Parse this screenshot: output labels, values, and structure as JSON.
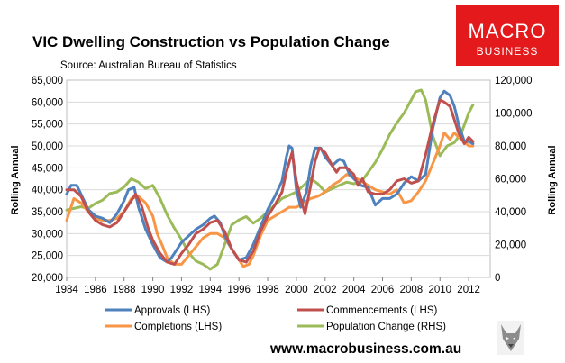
{
  "logo": {
    "line1": "MACRO",
    "line2": "BUSINESS"
  },
  "website": "www.macrobusiness.com.au",
  "colors": {
    "approvals": "#4F81BD",
    "commencements": "#C0504D",
    "completions": "#F79646",
    "population": "#9BBB59",
    "logo_bg": "#E3191B",
    "plot_border": "#BFBFBF",
    "grid": "#D9D9D9"
  },
  "chart_data": {
    "type": "line",
    "title": "VIC Dwelling Construction vs Population Change",
    "subtitle": "Source: Australian Bureau of Statistics",
    "ylabel_left": "Rolling Annual",
    "ylabel_right": "Rolling Annual",
    "xlim": [
      1984,
      2013.5
    ],
    "ylim_left": [
      20000,
      65000
    ],
    "ylim_right": [
      0,
      120000
    ],
    "x_ticks": [
      "1984",
      "1986",
      "1988",
      "1990",
      "1992",
      "1994",
      "1996",
      "1998",
      "2000",
      "2002",
      "2004",
      "2006",
      "2008",
      "2010",
      "2012"
    ],
    "y_ticks_left": [
      "20,000",
      "25,000",
      "30,000",
      "35,000",
      "40,000",
      "45,000",
      "50,000",
      "55,000",
      "60,000",
      "65,000"
    ],
    "y_ticks_right": [
      "0",
      "20,000",
      "40,000",
      "60,000",
      "80,000",
      "100,000",
      "120,000"
    ],
    "legend": "bottom",
    "series": [
      {
        "name": "Approvals (LHS)",
        "key": "approvals",
        "axis": "left",
        "x": [
          1984,
          1984.3,
          1984.7,
          1985,
          1985.5,
          1986,
          1986.5,
          1987,
          1987.5,
          1988,
          1988.3,
          1988.7,
          1989,
          1989.5,
          1990,
          1990.5,
          1991,
          1991.3,
          1991.7,
          1992,
          1992.5,
          1993,
          1993.5,
          1994,
          1994.3,
          1994.7,
          1995,
          1995.5,
          1996,
          1996.5,
          1997,
          1997.5,
          1998,
          1998.5,
          1999,
          1999.3,
          1999.5,
          1999.7,
          2000,
          2000.3,
          2000.7,
          2001,
          2001.3,
          2001.7,
          2002,
          2002.5,
          2003,
          2003.3,
          2003.7,
          2004,
          2004.5,
          2005,
          2005.5,
          2006,
          2006.5,
          2007,
          2007.5,
          2008,
          2008.5,
          2009,
          2009.5,
          2010,
          2010.3,
          2010.7,
          2011,
          2011.3,
          2011.7,
          2012,
          2012.3
        ],
        "y": [
          39000,
          41000,
          41000,
          39000,
          35500,
          34000,
          33500,
          32500,
          34500,
          37500,
          40000,
          40500,
          36000,
          31000,
          27500,
          24500,
          23500,
          24500,
          26500,
          28000,
          29500,
          31000,
          32000,
          33500,
          34000,
          32500,
          29500,
          26500,
          24000,
          24500,
          27500,
          31500,
          35500,
          38500,
          42000,
          47500,
          50000,
          49500,
          40000,
          36000,
          39500,
          45500,
          49500,
          49500,
          47500,
          45500,
          47000,
          46500,
          43500,
          42500,
          41000,
          40500,
          36500,
          38000,
          38000,
          39000,
          41500,
          43000,
          42000,
          43500,
          54000,
          61000,
          62500,
          61500,
          59000,
          55000,
          51000,
          51000,
          50500
        ]
      },
      {
        "name": "Commencements (LHS)",
        "key": "commencements",
        "axis": "left",
        "x": [
          1984,
          1984.5,
          1985,
          1985.5,
          1986,
          1986.5,
          1987,
          1987.5,
          1988,
          1988.5,
          1988.8,
          1989.2,
          1989.7,
          1990,
          1990.5,
          1991,
          1991.5,
          1992,
          1992.5,
          1993,
          1993.5,
          1994,
          1994.5,
          1995,
          1995.5,
          1996,
          1996.5,
          1997,
          1997.5,
          1998,
          1998.5,
          1999,
          1999.3,
          1999.7,
          2000,
          2000.3,
          2000.6,
          2001,
          2001.3,
          2001.6,
          2002,
          2002.5,
          2002.8,
          2003,
          2003.5,
          2004,
          2004.3,
          2004.6,
          2005,
          2005.5,
          2006,
          2006.5,
          2007,
          2007.5,
          2008,
          2008.5,
          2009,
          2009.5,
          2010,
          2010.3,
          2010.7,
          2011,
          2011.3,
          2011.7,
          2012,
          2012.3
        ],
        "y": [
          40000,
          40000,
          38500,
          35000,
          33000,
          32000,
          31500,
          32500,
          35000,
          37500,
          39000,
          36500,
          31000,
          28500,
          25500,
          23500,
          23000,
          25500,
          27500,
          30000,
          31000,
          32500,
          33000,
          30500,
          26500,
          24000,
          23500,
          26000,
          30500,
          34000,
          36500,
          39500,
          44000,
          48500,
          42000,
          38000,
          34500,
          41000,
          46500,
          49500,
          48500,
          45500,
          44000,
          45000,
          45000,
          43500,
          41000,
          42500,
          39500,
          39000,
          39000,
          40000,
          42000,
          42500,
          41500,
          42000,
          48000,
          55000,
          60500,
          60000,
          59000,
          56000,
          53000,
          50500,
          52000,
          51000
        ]
      },
      {
        "name": "Completions (LHS)",
        "key": "completions",
        "axis": "left",
        "x": [
          1984,
          1984.5,
          1985,
          1985.5,
          1986,
          1986.5,
          1987,
          1987.5,
          1988,
          1988.5,
          1989,
          1989.5,
          1990,
          1990.3,
          1990.7,
          1991,
          1991.5,
          1992,
          1992.5,
          1993,
          1993.5,
          1994,
          1994.5,
          1995,
          1995.5,
          1996,
          1996.3,
          1996.7,
          1997,
          1997.5,
          1998,
          1998.5,
          1999,
          1999.5,
          2000,
          2000.5,
          2001,
          2001.5,
          2002,
          2002.5,
          2003,
          2003.5,
          2004,
          2004.5,
          2005,
          2005.5,
          2006,
          2006.5,
          2007,
          2007.5,
          2008,
          2008.5,
          2009,
          2009.5,
          2010,
          2010.3,
          2010.7,
          2011,
          2011.3,
          2011.7,
          2012,
          2012.3
        ],
        "y": [
          33000,
          38000,
          37000,
          35000,
          33500,
          33000,
          33000,
          33500,
          35000,
          38000,
          38500,
          37000,
          34000,
          30000,
          27000,
          24500,
          23000,
          23000,
          25000,
          27000,
          29000,
          30000,
          30000,
          29000,
          26500,
          24000,
          22500,
          23000,
          25000,
          29500,
          33000,
          34000,
          35000,
          36000,
          36000,
          37000,
          38000,
          38500,
          39500,
          41000,
          42000,
          43500,
          43000,
          42000,
          41000,
          40000,
          39500,
          39000,
          40000,
          37000,
          37500,
          39500,
          42000,
          46000,
          50000,
          53000,
          51500,
          53000,
          52000,
          51000,
          50000,
          50000
        ]
      },
      {
        "name": "Population Change (RHS)",
        "key": "population",
        "axis": "right",
        "x": [
          1984,
          1984.5,
          1985,
          1985.5,
          1986,
          1986.5,
          1987,
          1987.5,
          1988,
          1988.5,
          1989,
          1989.5,
          1990,
          1990.5,
          1991,
          1991.5,
          1992,
          1992.5,
          1993,
          1993.5,
          1994,
          1994.5,
          1995,
          1995.5,
          1996,
          1996.5,
          1997,
          1997.5,
          1998,
          1998.5,
          1999,
          1999.5,
          2000,
          2000.5,
          2001,
          2001.5,
          2002,
          2002.5,
          2003,
          2003.5,
          2004,
          2004.5,
          2005,
          2005.5,
          2006,
          2006.5,
          2007,
          2007.5,
          2008,
          2008.3,
          2008.7,
          2009,
          2009.5,
          2010,
          2010.5,
          2011,
          2011.5,
          2012,
          2012.3
        ],
        "y": [
          41000,
          42000,
          43000,
          42000,
          45000,
          47000,
          51000,
          52000,
          55000,
          60000,
          58000,
          54000,
          56000,
          48000,
          38000,
          30000,
          23000,
          15000,
          10000,
          8000,
          5000,
          8000,
          20000,
          32000,
          35000,
          37000,
          33000,
          36000,
          40000,
          44000,
          48000,
          50000,
          52000,
          56000,
          60000,
          57000,
          52000,
          54000,
          56000,
          58000,
          57000,
          58000,
          64000,
          70000,
          78000,
          87000,
          94000,
          100000,
          108000,
          113000,
          114000,
          108000,
          86000,
          74000,
          80000,
          82000,
          88000,
          100000,
          105000
        ]
      }
    ]
  }
}
